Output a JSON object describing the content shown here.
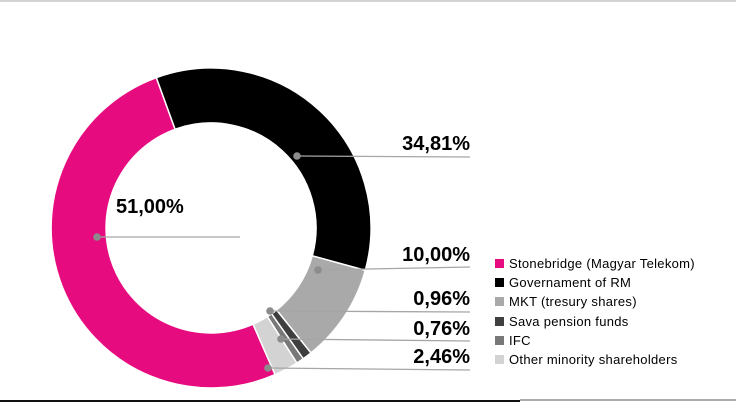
{
  "chart_data": {
    "type": "pie",
    "subtype": "donut",
    "title": "",
    "legend_position": "right",
    "direction": "clockwise",
    "start_angle_deg": 156.4,
    "inner_radius_ratio": 0.656,
    "series": [
      {
        "name": "Stonebridge (Magyar Telekom)",
        "value": 51.0,
        "label": "51,00%",
        "color": "#E60B7E"
      },
      {
        "name": "Governament of RM",
        "value": 34.81,
        "label": "34,81%",
        "color": "#000000"
      },
      {
        "name": "MKT (tresury shares)",
        "value": 10.0,
        "label": "10,00%",
        "color": "#A9A9A9"
      },
      {
        "name": "Sava pension funds",
        "value": 0.96,
        "label": "0,96%",
        "color": "#3F3F3F"
      },
      {
        "name": "IFC",
        "value": 0.76,
        "label": "0,76%",
        "color": "#787878"
      },
      {
        "name": "Other minority shareholders",
        "value": 2.46,
        "label": "2,46%",
        "color": "#D3D3D3"
      }
    ],
    "leader": {
      "line_color": "#A6A6A6",
      "dot_color": "#8C8C8C"
    }
  },
  "borders": {
    "top_color": "#D3D3D3",
    "bottom_left_color": "#111111",
    "bottom_right_color": "#ABABAB"
  }
}
